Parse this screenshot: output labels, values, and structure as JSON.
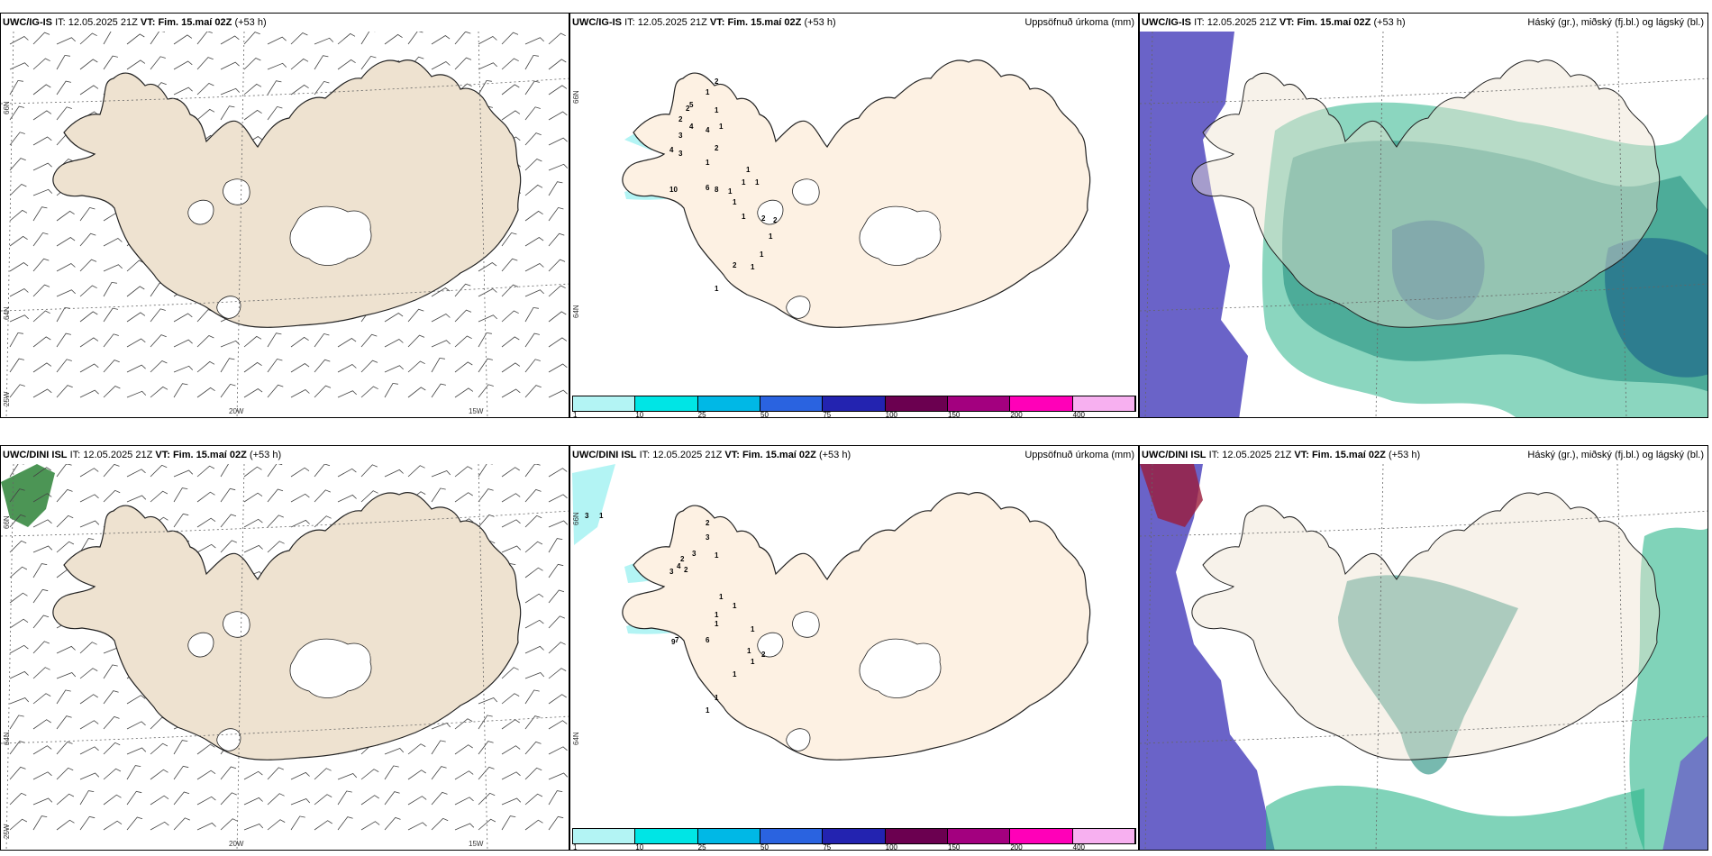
{
  "rows": [
    {
      "model": "UWC/IG-IS",
      "it_label": "IT:",
      "it_value": "12.05.2025 21Z",
      "vt_label": "VT:",
      "vt_value": "Fim. 15.maí 02Z",
      "lead": "(+53 h)"
    },
    {
      "model": "UWC/DINI ISL",
      "it_label": "IT:",
      "it_value": "12.05.2025 21Z",
      "vt_label": "VT:",
      "vt_value": "Fim. 15.maí 02Z",
      "lead": "(+53 h)"
    }
  ],
  "precip_title": "Uppsöfnuð úrkoma (mm)",
  "cloud_title": "Háský (gr.), miðský (fj.bl.) og lágský (bl.)",
  "legend": {
    "colors": [
      "#b3f4f4",
      "#00e5e5",
      "#00b8e6",
      "#2a63e0",
      "#2323b0",
      "#6b0050",
      "#a3007f",
      "#ff00b8",
      "#f7b0f0"
    ],
    "ticks": [
      "1",
      "10",
      "25",
      "50",
      "75",
      "100",
      "150",
      "200",
      "400"
    ]
  },
  "axis_labels": {
    "lon_20w": "20W",
    "lon_15w": "15W",
    "lon_25w": "25W",
    "lat_66n": "66N",
    "lat_64n": "64N"
  },
  "precip_values_top": [
    "2",
    "1",
    "2",
    "5",
    "2",
    "4",
    "4",
    "3",
    "4",
    "3",
    "1",
    "1",
    "2",
    "1",
    "10",
    "8",
    "6",
    "1",
    "1",
    "1",
    "1",
    "1",
    "1",
    "2",
    "2",
    "1",
    "1",
    "1",
    "2",
    "1"
  ],
  "precip_values_bottom": [
    "3",
    "1",
    "2",
    "3",
    "3",
    "2",
    "4",
    "3",
    "2",
    "1",
    "1",
    "1",
    "9",
    "7",
    "6",
    "1",
    "1",
    "1",
    "1",
    "2",
    "1",
    "1",
    "1",
    "1"
  ],
  "colors": {
    "land_wind": "#eee2d0",
    "land_precip": "#fdf1e3",
    "ocean_cloud": "#6a63c8",
    "cloud_low": "#2bb58a",
    "cloud_mid": "#1c8a7a",
    "cloud_dark": "#206a8a",
    "precip_light": "#b3f4f4"
  }
}
